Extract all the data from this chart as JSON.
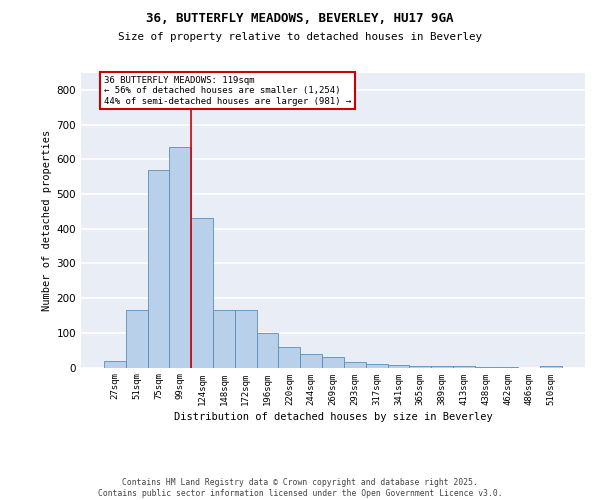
{
  "title_line1": "36, BUTTERFLY MEADOWS, BEVERLEY, HU17 9GA",
  "title_line2": "Size of property relative to detached houses in Beverley",
  "xlabel": "Distribution of detached houses by size in Beverley",
  "ylabel": "Number of detached properties",
  "bar_color": "#b8d0ea",
  "bar_edge_color": "#5b8db8",
  "background_color": "#e8edf6",
  "grid_color": "#ffffff",
  "vline_color": "#cc0000",
  "annotation_text_line1": "36 BUTTERFLY MEADOWS: 119sqm",
  "annotation_text_line2": "← 56% of detached houses are smaller (1,254)",
  "annotation_text_line3": "44% of semi-detached houses are larger (981) →",
  "categories": [
    "27sqm",
    "51sqm",
    "75sqm",
    "99sqm",
    "124sqm",
    "148sqm",
    "172sqm",
    "196sqm",
    "220sqm",
    "244sqm",
    "269sqm",
    "293sqm",
    "317sqm",
    "341sqm",
    "365sqm",
    "389sqm",
    "413sqm",
    "438sqm",
    "462sqm",
    "486sqm",
    "510sqm"
  ],
  "values": [
    20,
    165,
    570,
    635,
    430,
    165,
    165,
    100,
    58,
    40,
    30,
    15,
    10,
    8,
    5,
    5,
    4,
    2,
    1,
    0,
    5
  ],
  "ylim": [
    0,
    850
  ],
  "yticks": [
    0,
    100,
    200,
    300,
    400,
    500,
    600,
    700,
    800
  ],
  "vline_x": 3.5,
  "footnote_line1": "Contains HM Land Registry data © Crown copyright and database right 2025.",
  "footnote_line2": "Contains public sector information licensed under the Open Government Licence v3.0."
}
